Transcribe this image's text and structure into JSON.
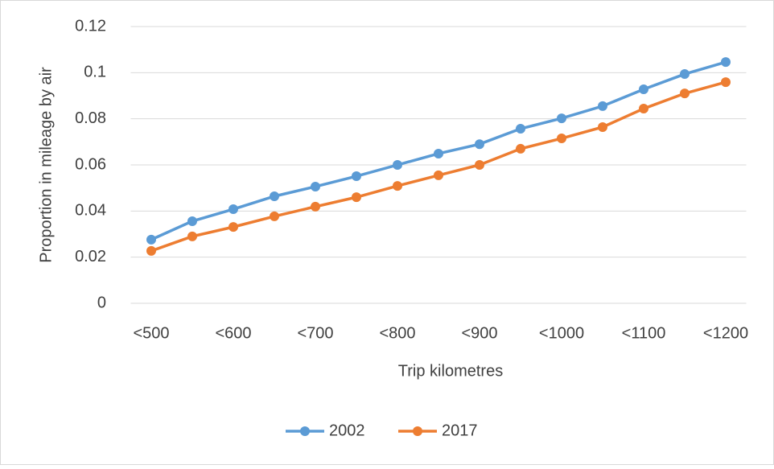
{
  "chart_data": {
    "type": "line",
    "x_label": "Trip kilometres",
    "y_label": "Proportion in mileage by air",
    "categories": [
      "<500",
      null,
      "<600",
      null,
      "<700",
      null,
      "<800",
      null,
      "<900",
      null,
      "<1000",
      null,
      "<1100",
      null,
      "<1200"
    ],
    "series": [
      {
        "name": "2002",
        "color": "#5b9bd5",
        "values": [
          0.0276,
          0.0356,
          0.0408,
          0.0464,
          0.0506,
          0.0551,
          0.06,
          0.0649,
          0.069,
          0.0757,
          0.0802,
          0.0855,
          0.0928,
          0.0994,
          0.1046
        ]
      },
      {
        "name": "2017",
        "color": "#ed7d31",
        "values": [
          0.0227,
          0.029,
          0.0331,
          0.0377,
          0.0419,
          0.046,
          0.0509,
          0.0555,
          0.06,
          0.067,
          0.0715,
          0.0764,
          0.0844,
          0.091,
          0.0959
        ]
      }
    ],
    "ylim": [
      0,
      0.12
    ],
    "yticks": [
      0,
      0.02,
      0.04,
      0.06,
      0.08,
      0.1,
      0.12
    ],
    "grid": true,
    "legend": "bottom"
  }
}
